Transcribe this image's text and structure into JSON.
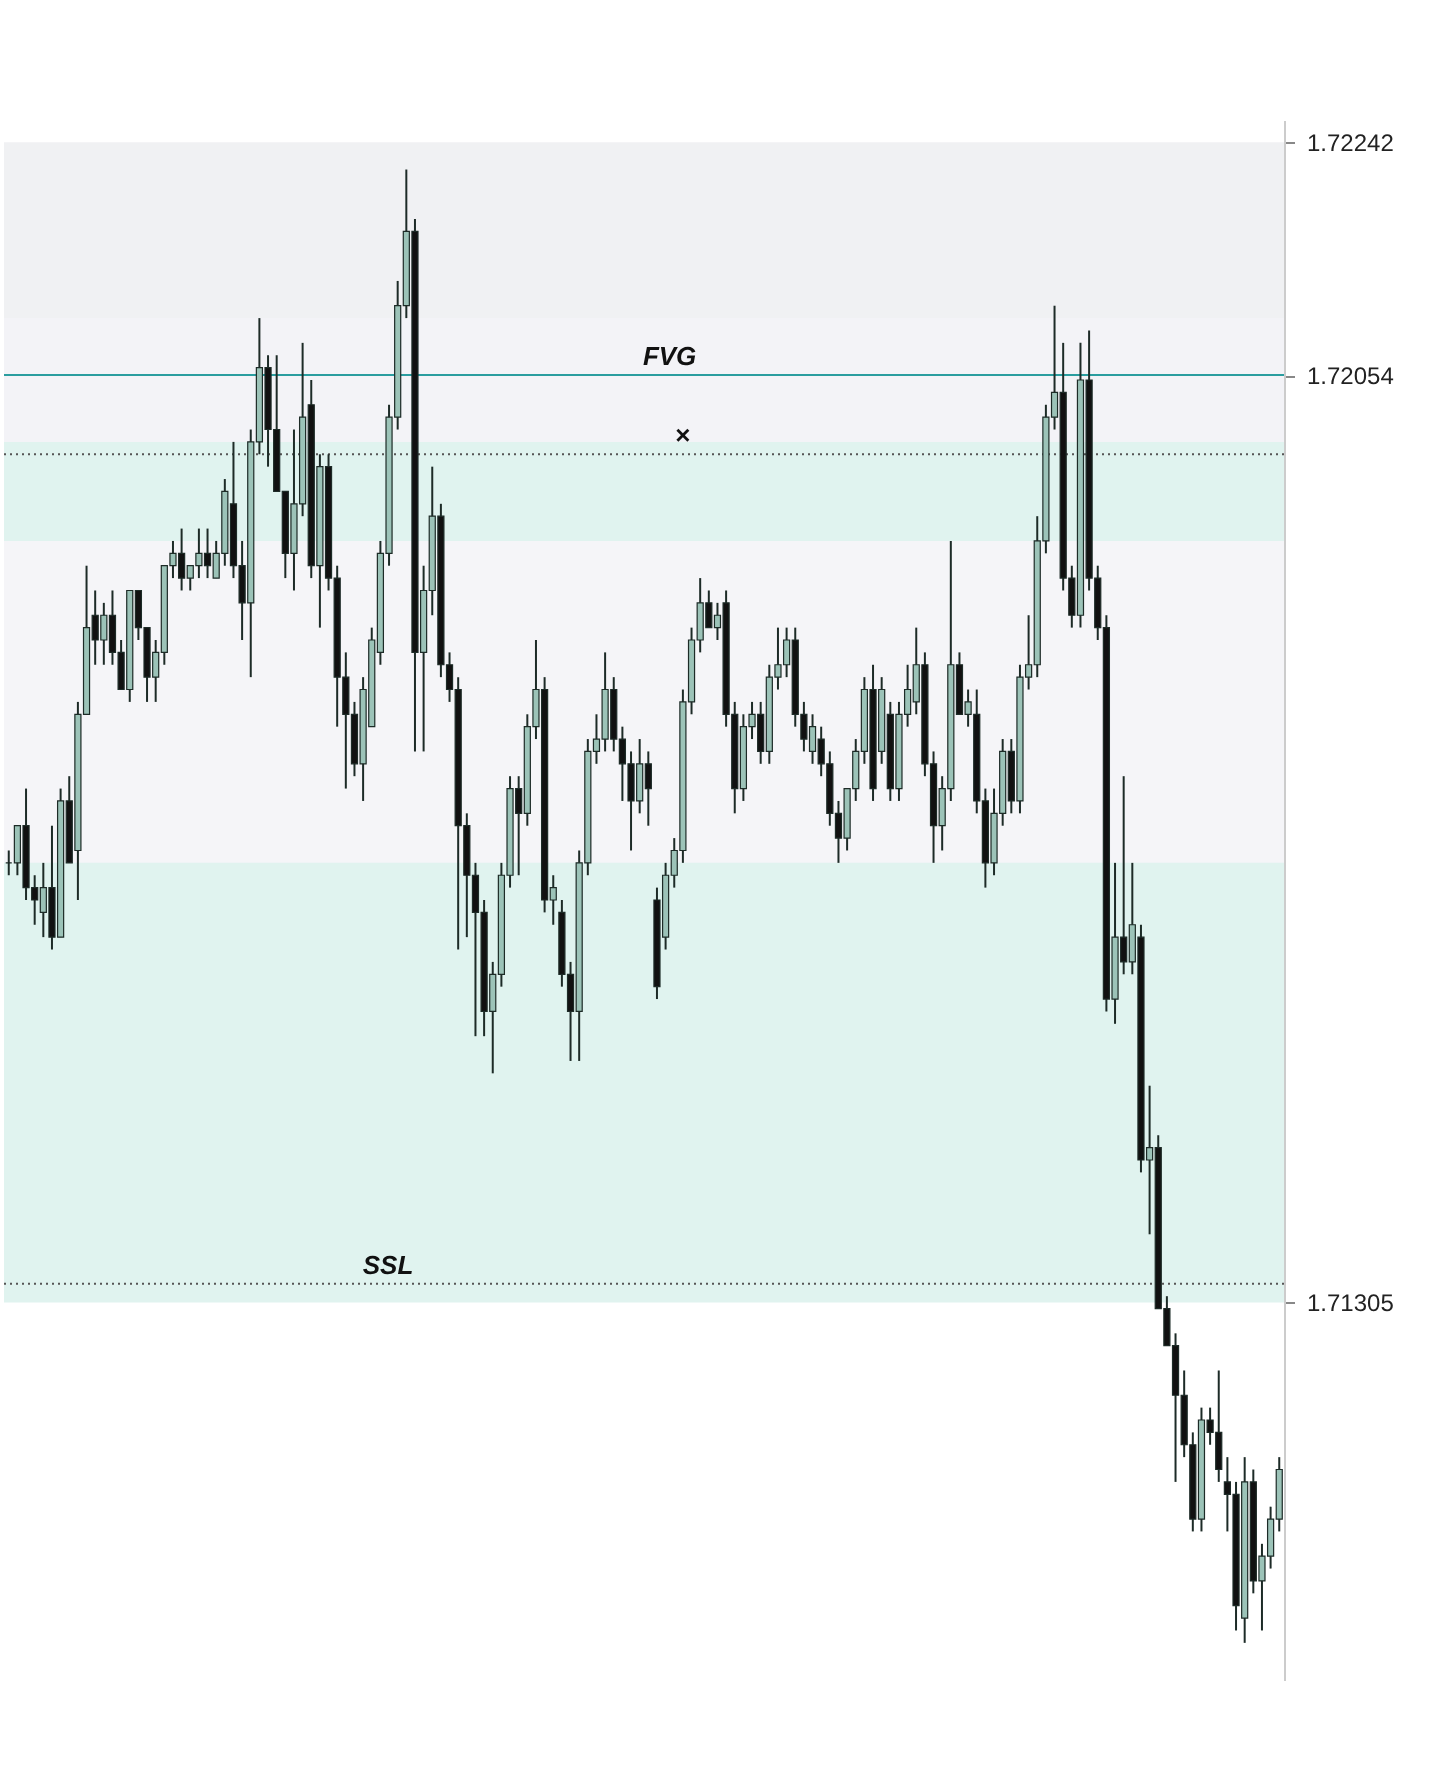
{
  "chart_data": {
    "type": "candlestick",
    "categories": [
      null,
      null,
      null,
      null,
      null,
      null,
      null,
      null,
      null,
      null,
      null,
      null,
      null,
      null,
      null,
      null,
      null,
      null,
      null,
      null,
      null,
      null,
      null,
      null,
      null,
      null,
      null,
      null,
      null,
      null,
      null,
      null,
      null,
      null,
      null,
      null,
      null,
      null,
      null,
      null,
      null,
      null,
      null,
      null,
      null,
      null,
      null,
      null,
      null,
      null,
      null,
      null,
      null,
      null,
      null,
      null,
      null,
      null,
      null,
      null,
      null,
      null,
      null,
      null,
      null,
      null,
      null,
      null,
      null,
      null,
      null,
      null,
      null,
      null,
      null,
      null,
      null,
      null,
      null,
      null,
      null,
      null,
      null,
      null,
      null,
      null,
      null,
      null,
      null,
      null,
      null,
      null,
      null,
      null,
      null,
      null,
      null,
      null,
      null,
      null,
      null,
      null,
      null,
      null,
      null,
      null,
      null,
      null,
      null,
      null,
      null,
      null,
      null,
      null,
      null,
      null,
      null,
      null,
      null,
      null,
      null,
      null,
      null,
      null,
      null,
      null,
      null,
      null,
      null,
      null,
      null,
      null,
      null,
      null,
      null,
      null,
      null,
      null,
      null,
      null,
      null,
      null,
      null,
      null,
      null,
      null,
      null,
      null
    ],
    "ohlc": [
      [
        1.7166,
        1.7167,
        1.7165,
        1.7166
      ],
      [
        1.7166,
        1.7169,
        1.7165,
        1.7169
      ],
      [
        1.7169,
        1.7172,
        1.7163,
        1.7164
      ],
      [
        1.7164,
        1.7165,
        1.7161,
        1.7163
      ],
      [
        1.7162,
        1.7166,
        1.716,
        1.7164
      ],
      [
        1.7164,
        1.7169,
        1.7159,
        1.716
      ],
      [
        1.716,
        1.7172,
        1.716,
        1.7171
      ],
      [
        1.7171,
        1.7173,
        1.7166,
        1.7166
      ],
      [
        1.7167,
        1.7179,
        1.7163,
        1.7178
      ],
      [
        1.7178,
        1.719,
        1.7178,
        1.7185
      ],
      [
        1.7186,
        1.7188,
        1.7182,
        1.7184
      ],
      [
        1.7184,
        1.7187,
        1.7182,
        1.7186
      ],
      [
        1.7186,
        1.7188,
        1.7182,
        1.7183
      ],
      [
        1.7183,
        1.7184,
        1.718,
        1.718
      ],
      [
        1.718,
        1.7188,
        1.7179,
        1.7188
      ],
      [
        1.7188,
        1.7188,
        1.7184,
        1.7185
      ],
      [
        1.7185,
        1.7185,
        1.7179,
        1.7181
      ],
      [
        1.7181,
        1.7184,
        1.7179,
        1.7183
      ],
      [
        1.7183,
        1.719,
        1.7182,
        1.719
      ],
      [
        1.719,
        1.7192,
        1.7189,
        1.7191
      ],
      [
        1.7191,
        1.7193,
        1.7188,
        1.7189
      ],
      [
        1.7189,
        1.719,
        1.7188,
        1.719
      ],
      [
        1.719,
        1.7193,
        1.7189,
        1.7191
      ],
      [
        1.7191,
        1.7193,
        1.7189,
        1.719
      ],
      [
        1.7189,
        1.7192,
        1.7189,
        1.7191
      ],
      [
        1.7191,
        1.7197,
        1.719,
        1.7196
      ],
      [
        1.7195,
        1.72,
        1.7189,
        1.719
      ],
      [
        1.719,
        1.7192,
        1.7184,
        1.7187
      ],
      [
        1.7187,
        1.7201,
        1.7181,
        1.72
      ],
      [
        1.72,
        1.721,
        1.7199,
        1.7206
      ],
      [
        1.7206,
        1.7207,
        1.7198,
        1.7201
      ],
      [
        1.7201,
        1.7207,
        1.7196,
        1.7196
      ],
      [
        1.7196,
        1.7196,
        1.7189,
        1.7191
      ],
      [
        1.7191,
        1.7201,
        1.7188,
        1.7195
      ],
      [
        1.7195,
        1.7208,
        1.7194,
        1.7202
      ],
      [
        1.7203,
        1.7205,
        1.7189,
        1.719
      ],
      [
        1.719,
        1.7199,
        1.7185,
        1.7198
      ],
      [
        1.7198,
        1.7199,
        1.7188,
        1.7189
      ],
      [
        1.7189,
        1.719,
        1.7177,
        1.7181
      ],
      [
        1.7181,
        1.7183,
        1.7172,
        1.7178
      ],
      [
        1.7178,
        1.7179,
        1.7173,
        1.7174
      ],
      [
        1.7174,
        1.7181,
        1.7171,
        1.718
      ],
      [
        1.7177,
        1.7185,
        1.7177,
        1.7184
      ],
      [
        1.7183,
        1.7192,
        1.7182,
        1.7191
      ],
      [
        1.7191,
        1.7203,
        1.719,
        1.7202
      ],
      [
        1.7202,
        1.7213,
        1.7201,
        1.7211
      ],
      [
        1.7211,
        1.7222,
        1.721,
        1.7217
      ],
      [
        1.7217,
        1.7218,
        1.7175,
        1.7183
      ],
      [
        1.7183,
        1.719,
        1.7175,
        1.7188
      ],
      [
        1.7188,
        1.7198,
        1.7186,
        1.7194
      ],
      [
        1.7194,
        1.7195,
        1.7181,
        1.7182
      ],
      [
        1.7182,
        1.7183,
        1.7179,
        1.718
      ],
      [
        1.718,
        1.7181,
        1.7159,
        1.7169
      ],
      [
        1.7169,
        1.717,
        1.716,
        1.7165
      ],
      [
        1.7165,
        1.7166,
        1.7152,
        1.7162
      ],
      [
        1.7162,
        1.7163,
        1.7152,
        1.7154
      ],
      [
        1.7154,
        1.7158,
        1.7149,
        1.7157
      ],
      [
        1.7157,
        1.7166,
        1.7156,
        1.7165
      ],
      [
        1.7165,
        1.7173,
        1.7164,
        1.7172
      ],
      [
        1.7172,
        1.7173,
        1.7165,
        1.717
      ],
      [
        1.717,
        1.7178,
        1.7169,
        1.7177
      ],
      [
        1.7177,
        1.7184,
        1.7176,
        1.718
      ],
      [
        1.718,
        1.7181,
        1.7162,
        1.7163
      ],
      [
        1.7163,
        1.7165,
        1.7161,
        1.7164
      ],
      [
        1.7162,
        1.7163,
        1.7156,
        1.7157
      ],
      [
        1.7157,
        1.7158,
        1.715,
        1.7154
      ],
      [
        1.7154,
        1.7167,
        1.715,
        1.7166
      ],
      [
        1.7166,
        1.7176,
        1.7165,
        1.7175
      ],
      [
        1.7175,
        1.7178,
        1.7174,
        1.7176
      ],
      [
        1.7176,
        1.7183,
        1.7175,
        1.718
      ],
      [
        1.718,
        1.7181,
        1.7175,
        1.7176
      ],
      [
        1.7176,
        1.7177,
        1.7171,
        1.7174
      ],
      [
        1.7174,
        1.7175,
        1.7167,
        1.7171
      ],
      [
        1.7171,
        1.7176,
        1.717,
        1.7174
      ],
      [
        1.7174,
        1.7175,
        1.7169,
        1.7172
      ],
      [
        1.7163,
        1.7164,
        1.7155,
        1.7156
      ],
      [
        1.716,
        1.7166,
        1.7159,
        1.7165
      ],
      [
        1.7165,
        1.7168,
        1.7164,
        1.7167
      ],
      [
        1.7167,
        1.718,
        1.7166,
        1.7179
      ],
      [
        1.7179,
        1.7185,
        1.7178,
        1.7184
      ],
      [
        1.7184,
        1.7189,
        1.7183,
        1.7187
      ],
      [
        1.7187,
        1.7188,
        1.7185,
        1.7185
      ],
      [
        1.7185,
        1.7187,
        1.7184,
        1.7186
      ],
      [
        1.7187,
        1.7188,
        1.7177,
        1.7178
      ],
      [
        1.7178,
        1.7179,
        1.717,
        1.7172
      ],
      [
        1.7172,
        1.7178,
        1.7171,
        1.7177
      ],
      [
        1.7177,
        1.7179,
        1.7176,
        1.7178
      ],
      [
        1.7178,
        1.7179,
        1.7174,
        1.7175
      ],
      [
        1.7175,
        1.7182,
        1.7174,
        1.7181
      ],
      [
        1.7181,
        1.7185,
        1.718,
        1.7182
      ],
      [
        1.7182,
        1.7185,
        1.7181,
        1.7184
      ],
      [
        1.7184,
        1.7185,
        1.7177,
        1.7178
      ],
      [
        1.7178,
        1.7179,
        1.7175,
        1.7176
      ],
      [
        1.7175,
        1.7178,
        1.7174,
        1.7177
      ],
      [
        1.7176,
        1.7177,
        1.7173,
        1.7174
      ],
      [
        1.7174,
        1.7175,
        1.7169,
        1.717
      ],
      [
        1.717,
        1.7171,
        1.7166,
        1.7168
      ],
      [
        1.7168,
        1.7172,
        1.7167,
        1.7172
      ],
      [
        1.7172,
        1.7176,
        1.7171,
        1.7175
      ],
      [
        1.7175,
        1.7181,
        1.7174,
        1.718
      ],
      [
        1.718,
        1.7182,
        1.7171,
        1.7172
      ],
      [
        1.7175,
        1.7181,
        1.7174,
        1.718
      ],
      [
        1.7178,
        1.7179,
        1.7171,
        1.7172
      ],
      [
        1.7172,
        1.7179,
        1.7171,
        1.7178
      ],
      [
        1.7178,
        1.7182,
        1.7177,
        1.718
      ],
      [
        1.7179,
        1.7185,
        1.7178,
        1.7182
      ],
      [
        1.7182,
        1.7183,
        1.7173,
        1.7174
      ],
      [
        1.7174,
        1.7175,
        1.7166,
        1.7169
      ],
      [
        1.7169,
        1.7173,
        1.7167,
        1.7172
      ],
      [
        1.7172,
        1.7192,
        1.7171,
        1.7182
      ],
      [
        1.7182,
        1.7183,
        1.7178,
        1.7178
      ],
      [
        1.7178,
        1.718,
        1.7177,
        1.7179
      ],
      [
        1.7178,
        1.718,
        1.717,
        1.7171
      ],
      [
        1.7171,
        1.7172,
        1.7164,
        1.7166
      ],
      [
        1.7166,
        1.7172,
        1.7165,
        1.717
      ],
      [
        1.717,
        1.7176,
        1.7169,
        1.7175
      ],
      [
        1.7175,
        1.7176,
        1.717,
        1.7171
      ],
      [
        1.7171,
        1.7182,
        1.717,
        1.7181
      ],
      [
        1.7181,
        1.7186,
        1.718,
        1.7182
      ],
      [
        1.7182,
        1.7194,
        1.7181,
        1.7192
      ],
      [
        1.7192,
        1.7203,
        1.7191,
        1.7202
      ],
      [
        1.7202,
        1.7211,
        1.7201,
        1.7204
      ],
      [
        1.7204,
        1.7208,
        1.7188,
        1.7189
      ],
      [
        1.7189,
        1.719,
        1.7185,
        1.7186
      ],
      [
        1.7186,
        1.7208,
        1.7185,
        1.7205
      ],
      [
        1.7205,
        1.7209,
        1.7188,
        1.7189
      ],
      [
        1.7189,
        1.719,
        1.7184,
        1.7185
      ],
      [
        1.7185,
        1.7186,
        1.7154,
        1.7155
      ],
      [
        1.7155,
        1.7166,
        1.7153,
        1.716
      ],
      [
        1.716,
        1.7173,
        1.7157,
        1.7158
      ],
      [
        1.7158,
        1.7166,
        1.7157,
        1.7161
      ],
      [
        1.716,
        1.7161,
        1.7141,
        1.7142
      ],
      [
        1.7142,
        1.7148,
        1.7136,
        1.7143
      ],
      [
        1.7143,
        1.7144,
        1.713,
        1.713
      ],
      [
        1.713,
        1.7131,
        1.7127,
        1.7127
      ],
      [
        1.7127,
        1.7128,
        1.7116,
        1.7123
      ],
      [
        1.7123,
        1.7125,
        1.7118,
        1.7119
      ],
      [
        1.7119,
        1.712,
        1.7112,
        1.7113
      ],
      [
        1.7113,
        1.7122,
        1.7112,
        1.7121
      ],
      [
        1.7121,
        1.7122,
        1.7119,
        1.712
      ],
      [
        1.712,
        1.7125,
        1.7116,
        1.7117
      ],
      [
        1.7116,
        1.7118,
        1.7112,
        1.7115
      ],
      [
        1.7115,
        1.7116,
        1.7104,
        1.7106
      ],
      [
        1.7105,
        1.7118,
        1.7103,
        1.7116
      ],
      [
        1.7116,
        1.7117,
        1.7107,
        1.7108
      ],
      [
        1.7108,
        1.7111,
        1.7104,
        1.711
      ],
      [
        1.711,
        1.7114,
        1.7109,
        1.7113
      ],
      [
        1.7113,
        1.7118,
        1.7112,
        1.7117
      ]
    ],
    "ylim": [
      1.71,
      1.7226
    ],
    "yticks": [
      1.72242,
      1.72054,
      1.71305
    ],
    "grid": false,
    "bands": [
      {
        "axis": "y",
        "from": 1.72054,
        "to": 1.72242,
        "color": "#f0f1f3"
      },
      {
        "axis": "y",
        "from": 1.71305,
        "to": 1.72054,
        "color": "#e0f3ef"
      },
      {
        "axis": "y",
        "from": 1.72,
        "to": 1.721,
        "color": "#f3f3f7"
      },
      {
        "axis": "y",
        "from": 1.7166,
        "to": 1.7192,
        "color": "#f5f5f8"
      }
    ],
    "ref_lines": [
      {
        "axis": "y",
        "value": 1.72054,
        "label": "FVG",
        "color": "#2a9d9f",
        "line_style": "solid"
      },
      {
        "axis": "y",
        "value": 1.7199,
        "label": "×",
        "color": "#555555",
        "line_style": "dotted"
      },
      {
        "axis": "y",
        "value": 1.7132,
        "label": "SSL",
        "color": "#555555",
        "line_style": "dotted"
      }
    ]
  }
}
